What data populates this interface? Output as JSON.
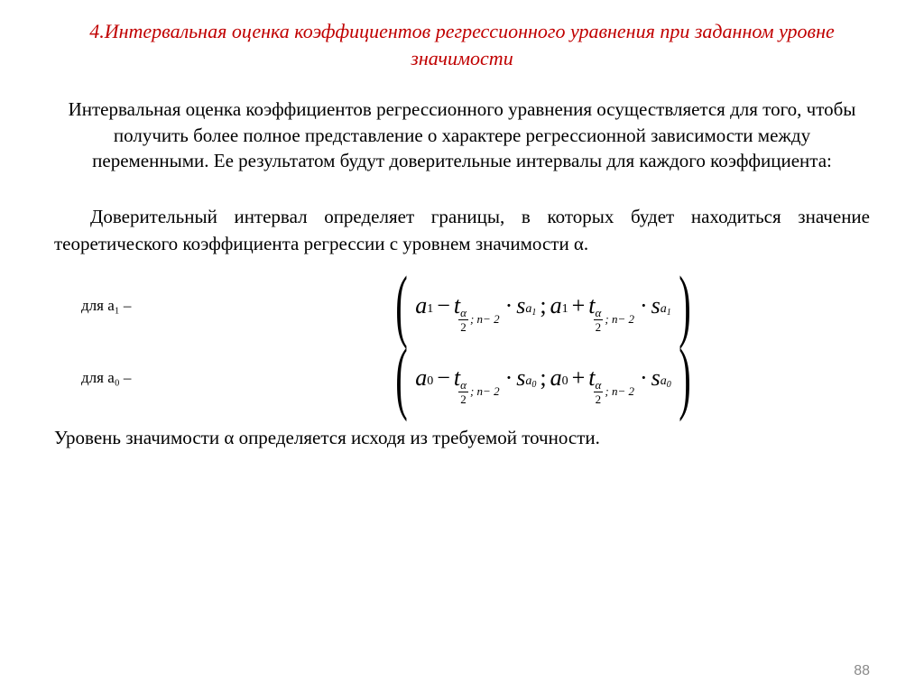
{
  "title": "4.Интервальная оценка коэффициентов регрессионного уравнения при заданном уровне значимости",
  "para1": "Интервальная оценка коэффициентов регрессионного уравнения осуществляется для того, чтобы получить более полное представление о характере регрессионной зависимости между переменными. Ее результатом будут доверительные интервалы для каждого коэффициента:",
  "para2": "Доверительный интервал определяет границы, в которых будет находиться значение теоретического коэффициента регрессии с уровнем значимости α.",
  "formula1": {
    "label": "для a₁ –",
    "idx": "1"
  },
  "formula2": {
    "label": "для a₀ –",
    "idx": "0"
  },
  "para3": "Уровень значимости α определяется исходя из требуемой точности.",
  "pagenum": "88",
  "colors": {
    "title": "#c00000",
    "text": "#000000",
    "pagenum": "#8a8a8a",
    "bg": "#ffffff"
  },
  "typography": {
    "body_font": "Times New Roman",
    "title_fontsize": 22,
    "body_fontsize": 21,
    "formula_fontsize": 26
  },
  "sym": {
    "a": "a",
    "t": "t",
    "s": "s",
    "alpha": "α",
    "n": "n",
    "minus": "−",
    "plus": "+",
    "dot": "·",
    "semi": ";",
    "two": "2",
    "nminus2": "− 2",
    "lp": "(",
    "rp": ")"
  }
}
